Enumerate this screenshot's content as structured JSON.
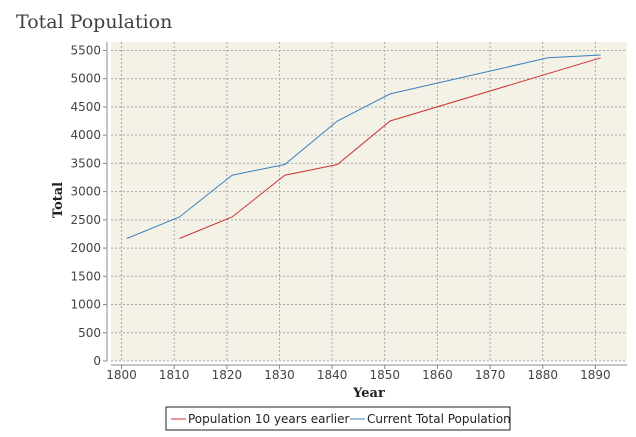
{
  "chart_data": {
    "type": "line",
    "title": "Total Population",
    "xlabel": "Year",
    "ylabel": "Total",
    "xlim": [
      1798,
      1896
    ],
    "ylim": [
      0,
      5650
    ],
    "x_ticks": [
      1800,
      1810,
      1820,
      1830,
      1840,
      1850,
      1860,
      1870,
      1880,
      1890
    ],
    "y_ticks": [
      0,
      500,
      1000,
      1500,
      2000,
      2500,
      3000,
      3500,
      4000,
      4500,
      5000,
      5500
    ],
    "grid": true,
    "legend_position": "bottom",
    "background": "#f4f2e6",
    "series": [
      {
        "name": "Population 10 years earlier",
        "color": "#cc3333",
        "x": [
          1811,
          1821,
          1831,
          1841,
          1851,
          1891
        ],
        "values": [
          2170,
          2550,
          3290,
          3480,
          4250,
          5370
        ]
      },
      {
        "name": "Current Total Population",
        "color": "#3a7fc0",
        "x": [
          1801,
          1811,
          1821,
          1831,
          1841,
          1851,
          1881,
          1891
        ],
        "values": [
          2170,
          2550,
          3290,
          3480,
          4250,
          4730,
          5370,
          5420
        ]
      }
    ]
  }
}
